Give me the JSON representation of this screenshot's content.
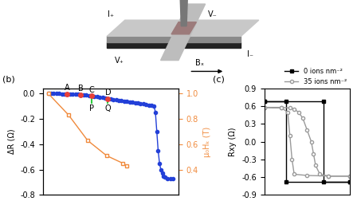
{
  "schematic": {
    "labels": [
      "I₊",
      "V₋",
      "V₊",
      "I₋",
      "Bₓ"
    ]
  },
  "chart_data": [
    {
      "type": "line",
      "title": "(b)",
      "y_label": "ΔR (Ω)",
      "y2_label": "μ₀Hₖ (T)",
      "xlim": [
        0,
        100
      ],
      "ylim": [
        -0.8,
        0.04
      ],
      "yticks": [
        0.0,
        -0.2,
        -0.4,
        -0.6,
        -0.8
      ],
      "y2lim": [
        0.2,
        1.04
      ],
      "y2ticks": [
        0.4,
        0.6,
        0.8,
        1.0
      ],
      "tick_labels": "y",
      "series": [
        {
          "color": "#2340d8",
          "marker": "circle",
          "line_style": "solid",
          "x": [
            4,
            6,
            8,
            10,
            12,
            14,
            16,
            18,
            20,
            22,
            24,
            26,
            28,
            30,
            32,
            34,
            36,
            38,
            40,
            42,
            44,
            46,
            48,
            50,
            52,
            54,
            56,
            58,
            60,
            62,
            64,
            66,
            68,
            70,
            72,
            74,
            76,
            78,
            80,
            82,
            83,
            84,
            85,
            86,
            87,
            88,
            89,
            90,
            92,
            94,
            96
          ],
          "values": [
            0,
            0,
            0,
            0,
            0,
            -0.002,
            -0.002,
            -0.003,
            -0.004,
            -0.005,
            -0.006,
            -0.007,
            -0.008,
            -0.01,
            -0.012,
            -0.015,
            -0.02,
            -0.023,
            -0.026,
            -0.03,
            -0.033,
            -0.036,
            -0.04,
            -0.043,
            -0.046,
            -0.05,
            -0.053,
            -0.056,
            -0.06,
            -0.063,
            -0.066,
            -0.07,
            -0.073,
            -0.076,
            -0.08,
            -0.083,
            -0.087,
            -0.09,
            -0.095,
            -0.1,
            -0.15,
            -0.3,
            -0.45,
            -0.55,
            -0.6,
            -0.63,
            -0.65,
            -0.66,
            -0.67,
            -0.67,
            -0.67
          ]
        },
        {
          "color": "#f08a3c",
          "marker": "square",
          "line_style": "solid",
          "axis": "y2",
          "x": [
            4,
            19,
            33,
            47,
            59,
            62
          ],
          "values": [
            1.0,
            0.83,
            0.63,
            0.51,
            0.45,
            0.43
          ]
        }
      ],
      "annotations": [
        {
          "text": "A",
          "x": 18,
          "y": -0.003
        },
        {
          "text": "B",
          "x": 28,
          "y": -0.008
        },
        {
          "text": "C",
          "x": 36,
          "y": -0.02
        },
        {
          "text": "D",
          "x": 48,
          "y": -0.04
        }
      ],
      "markers": [
        {
          "label": "P",
          "x": 36,
          "ymin": -0.075,
          "ymax": -0.02
        },
        {
          "label": "Q",
          "x": 48,
          "ymin": -0.075,
          "ymax": -0.04
        }
      ]
    },
    {
      "type": "line",
      "title": "(c)",
      "y_label": "Rxy (Ω)",
      "xlim": [
        -1,
        1
      ],
      "ylim": [
        -0.9,
        0.9
      ],
      "yticks": [
        0.9,
        0.6,
        0.3,
        0.0,
        -0.3,
        -0.6,
        -0.9
      ],
      "tick_labels": "y",
      "legend": "upper right",
      "series": [
        {
          "name": "0 ions nm⁻²",
          "color": "#000000",
          "marker": "square",
          "line_style": "solid",
          "x": [
            -1,
            0.39,
            0.39,
            1,
            1,
            -0.49,
            -0.49,
            -1
          ],
          "values": [
            0.68,
            0.68,
            -0.68,
            -0.68,
            -0.68,
            -0.68,
            0.68,
            0.68
          ]
        },
        {
          "name": "35 ions nm⁻²",
          "color": "#9a9a9a",
          "marker": "circle",
          "line_style": "solid",
          "x": [
            -1,
            -0.6,
            -0.4,
            -0.3,
            -0.2,
            -0.1,
            0.0,
            0.1,
            0.15,
            0.2,
            0.3,
            0.5,
            1,
            1,
            0.5,
            0.0,
            -0.3,
            -0.35,
            -0.4,
            -0.45,
            -0.6,
            -1
          ],
          "values": [
            0.58,
            0.58,
            0.57,
            0.55,
            0.5,
            0.4,
            0.2,
            0.0,
            -0.2,
            -0.4,
            -0.55,
            -0.58,
            -0.58,
            -0.58,
            -0.58,
            -0.57,
            -0.55,
            -0.3,
            0.1,
            0.5,
            0.57,
            0.58
          ]
        }
      ]
    }
  ]
}
